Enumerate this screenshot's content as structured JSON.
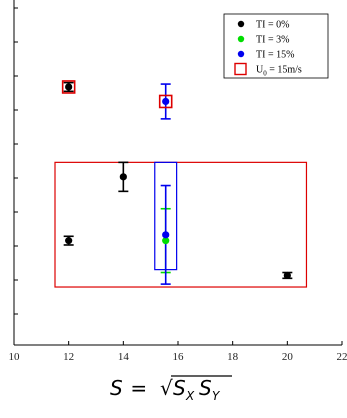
{
  "chart_data": {
    "type": "scatter",
    "xlim": [
      10,
      22
    ],
    "x_ticks": [
      10,
      12,
      14,
      16,
      18,
      20,
      22
    ],
    "y_ticks_labeled": false,
    "legend_position": "top-right",
    "series": [
      {
        "name": "TI = 0%",
        "color": "#000000",
        "points": [
          {
            "x": 12,
            "y": 0.0,
            "err": 0.0
          },
          {
            "x": 12,
            "y": 6.3,
            "err": 0.15
          },
          {
            "x": 14,
            "y": 3.2,
            "err": 0.5
          },
          {
            "x": 20,
            "y": 0.0,
            "err": 0.0
          }
        ]
      },
      {
        "name": "TI = 3%",
        "color": "#00dd00",
        "points": [
          {
            "x": 15.55,
            "y": 1.0,
            "err": 1.1
          }
        ]
      },
      {
        "name": "TI = 15%",
        "color": "#0000ee",
        "points": [
          {
            "x": 15.55,
            "y": 5.8,
            "err": 0.6
          },
          {
            "x": 15.55,
            "y": 1.2,
            "err": 1.7
          }
        ]
      }
    ],
    "extra_points": [
      {
        "series": "TI = 0%",
        "x": 12,
        "y": 1.0,
        "err": 0.15
      },
      {
        "series": "TI = 0%",
        "x": 20,
        "y": -0.2,
        "err": 0.1
      }
    ],
    "highlight": {
      "name": "U0 = 15m/s",
      "color": "#dd0000",
      "markers": [
        {
          "x": 12,
          "y": 6.3
        },
        {
          "x": 15.55,
          "y": 5.8
        }
      ]
    },
    "regions": [
      {
        "color": "#dd0000",
        "x_range": [
          11.5,
          20.7
        ],
        "y_range": [
          -0.6,
          3.7
        ]
      },
      {
        "color": "#0000ee",
        "x_range": [
          15.15,
          15.95
        ],
        "y_range": [
          0.0,
          3.7
        ]
      }
    ]
  },
  "legend": {
    "items": [
      {
        "label": "TI = 0%",
        "marker": "dot",
        "color": "#000000"
      },
      {
        "label": "TI = 3%",
        "marker": "dot",
        "color": "#00dd00"
      },
      {
        "label": "TI = 15%",
        "marker": "dot",
        "color": "#0000ee"
      },
      {
        "label_main": "U",
        "label_sub": "0",
        "label_rest": " = 15m/s",
        "marker": "square",
        "color": "#dd0000"
      }
    ]
  },
  "formula": {
    "lhs": "S",
    "equals": " = ",
    "radical": "√",
    "term1": "S",
    "term1_sub": "X",
    "term2": "S",
    "term2_sub": "Y"
  }
}
